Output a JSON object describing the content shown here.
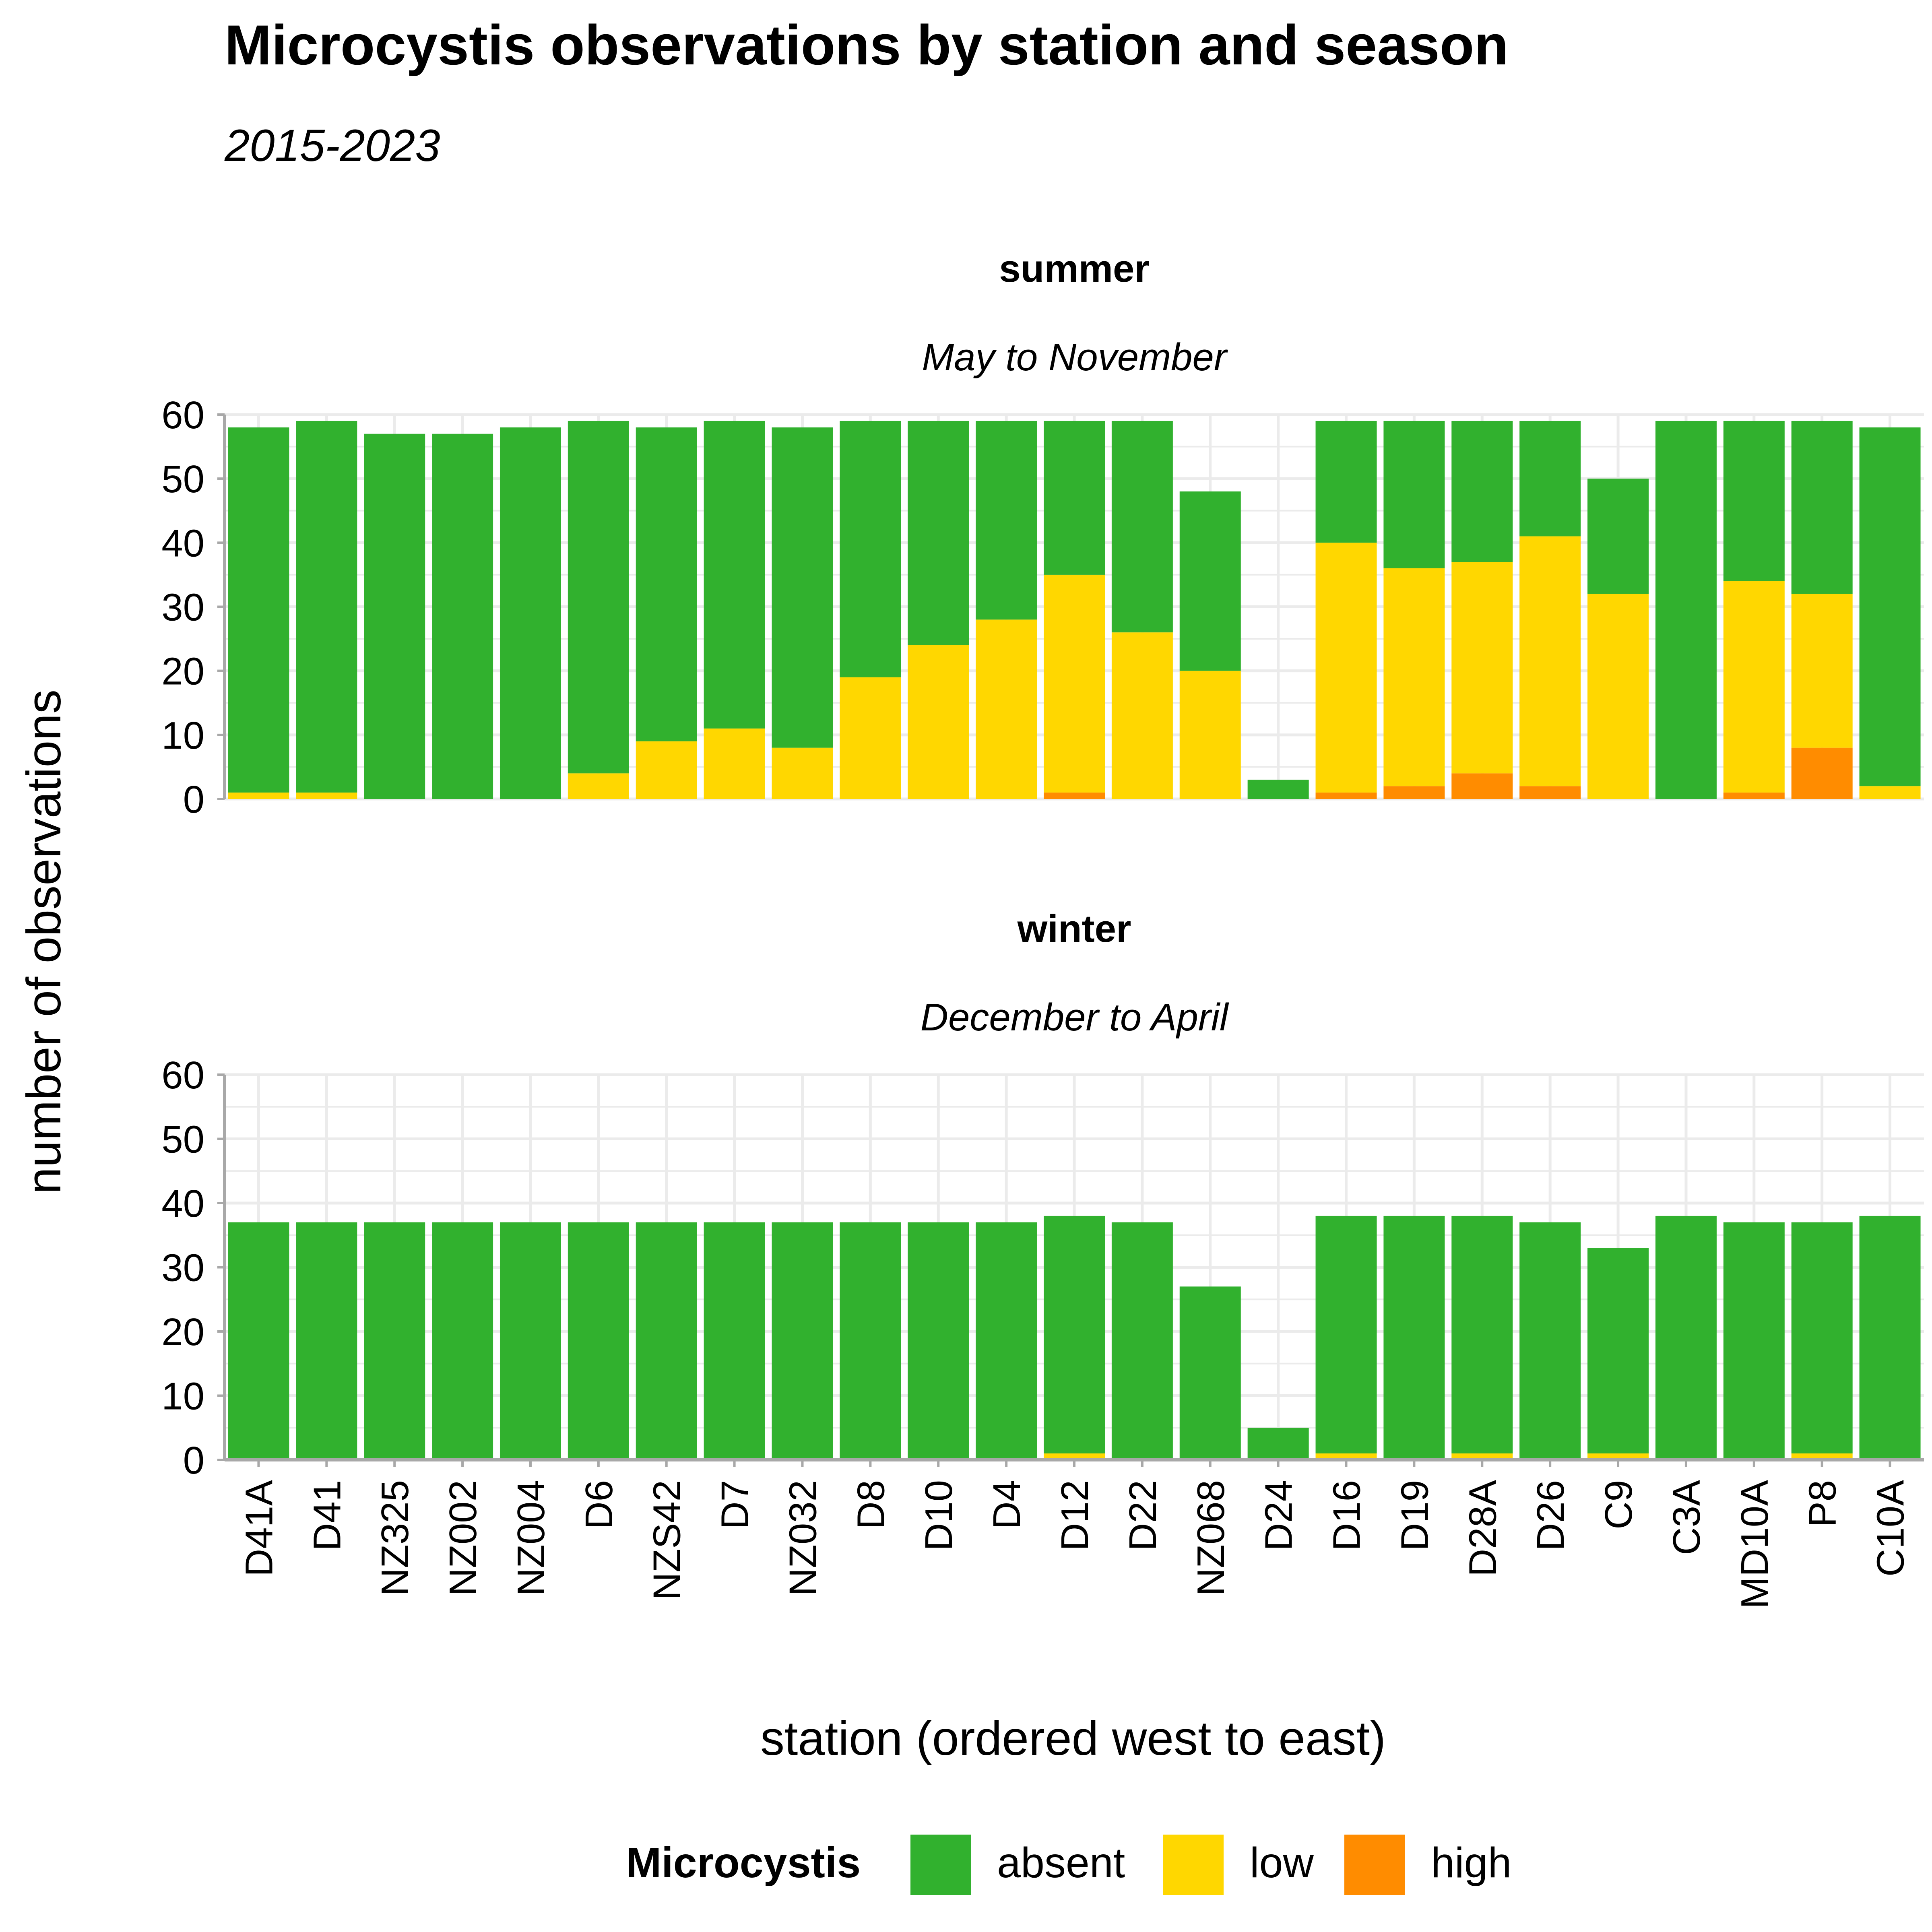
{
  "chart_data": {
    "type": "bar",
    "stacked": true,
    "title": "Microcystis observations by station and season",
    "subtitle": "2015-2023",
    "xlabel": "station (ordered west to east)",
    "ylabel": "number of observations",
    "ylim": [
      0,
      60
    ],
    "yticks": [
      0,
      10,
      20,
      30,
      40,
      50,
      60
    ],
    "grid": true,
    "legend": {
      "title": "Microcystis",
      "placement": "bottom",
      "entries": [
        "absent",
        "low",
        "high"
      ]
    },
    "colors": {
      "absent": "#31b12e",
      "low": "#ffd700",
      "high": "#ff8c00"
    },
    "categories": [
      "D41A",
      "D41",
      "NZ325",
      "NZ002",
      "NZ004",
      "D6",
      "NZS42",
      "D7",
      "NZ032",
      "D8",
      "D10",
      "D4",
      "D12",
      "D22",
      "NZ068",
      "D24",
      "D16",
      "D19",
      "D28A",
      "D26",
      "C9",
      "C3A",
      "MD10A",
      "P8",
      "C10A"
    ],
    "panels": [
      {
        "title": "summer",
        "subtitle": "May to November",
        "series": [
          {
            "name": "high",
            "values": [
              0,
              0,
              0,
              0,
              0,
              0,
              0,
              0,
              0,
              0,
              0,
              0,
              1,
              0,
              0,
              0,
              1,
              2,
              4,
              2,
              0,
              0,
              1,
              8,
              0
            ]
          },
          {
            "name": "low",
            "values": [
              1,
              1,
              0,
              0,
              0,
              4,
              9,
              11,
              8,
              19,
              24,
              28,
              34,
              26,
              20,
              0,
              39,
              34,
              33,
              39,
              32,
              0,
              33,
              24,
              2
            ]
          },
          {
            "name": "absent",
            "values": [
              57,
              58,
              57,
              57,
              58,
              55,
              49,
              48,
              50,
              40,
              35,
              31,
              24,
              33,
              28,
              3,
              19,
              23,
              22,
              18,
              18,
              59,
              25,
              27,
              56
            ]
          }
        ]
      },
      {
        "title": "winter",
        "subtitle": "December to April",
        "series": [
          {
            "name": "high",
            "values": [
              0,
              0,
              0,
              0,
              0,
              0,
              0,
              0,
              0,
              0,
              0,
              0,
              0,
              0,
              0,
              0,
              0,
              0,
              0,
              0,
              0,
              0,
              0,
              0,
              0
            ]
          },
          {
            "name": "low",
            "values": [
              0,
              0,
              0,
              0,
              0,
              0,
              0,
              0,
              0,
              0,
              0,
              0,
              1,
              0,
              0,
              0,
              1,
              0,
              1,
              0,
              1,
              0,
              0,
              1,
              0
            ]
          },
          {
            "name": "absent",
            "values": [
              37,
              37,
              37,
              37,
              37,
              37,
              37,
              37,
              37,
              37,
              37,
              37,
              37,
              37,
              27,
              5,
              37,
              38,
              37,
              37,
              32,
              38,
              37,
              36,
              38
            ]
          }
        ]
      }
    ]
  }
}
